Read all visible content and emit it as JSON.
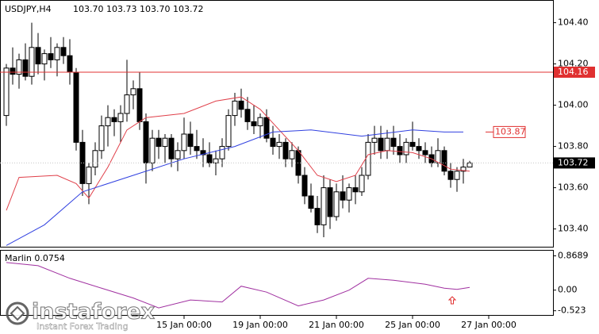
{
  "chart_data": [
    {
      "type": "candlestick",
      "title": "USDJPY,H4",
      "subtitle": "103.70 103.73 103.70 103.72",
      "open": [
        103.95,
        104.18,
        104.15,
        104.22,
        104.14,
        104.28,
        104.2,
        104.25,
        104.22,
        104.28,
        104.24,
        104.16,
        103.82,
        103.62,
        103.7,
        103.78,
        103.9,
        103.94,
        103.92,
        103.96,
        104.05,
        104.08,
        103.92,
        103.72,
        103.84,
        103.8,
        103.84,
        103.74,
        103.78,
        103.86,
        103.8,
        103.78,
        103.76,
        103.72,
        103.74,
        103.8,
        103.95,
        104.02,
        103.98,
        103.92,
        103.9,
        103.94,
        103.84,
        103.8,
        103.82,
        103.74,
        103.78,
        103.66,
        103.56,
        103.5,
        103.42,
        103.6,
        103.46,
        103.58,
        103.54,
        103.6,
        103.58,
        103.66,
        103.82,
        103.84,
        103.78,
        103.84,
        103.8,
        103.76,
        103.82,
        103.8,
        103.78,
        103.76,
        103.72,
        103.78,
        103.68,
        103.64,
        103.68,
        103.7
      ],
      "high": [
        104.2,
        104.28,
        104.25,
        104.3,
        104.4,
        104.35,
        104.27,
        104.33,
        104.3,
        104.33,
        104.32,
        104.18,
        103.88,
        103.72,
        103.82,
        103.95,
        104.0,
        103.98,
        104.0,
        104.22,
        104.12,
        104.16,
        103.96,
        103.88,
        103.88,
        103.86,
        103.86,
        103.82,
        103.94,
        103.92,
        103.88,
        103.84,
        103.82,
        103.78,
        103.84,
        103.98,
        104.06,
        104.08,
        104.04,
        104.0,
        103.96,
        103.98,
        103.9,
        103.86,
        103.84,
        103.82,
        103.8,
        103.7,
        103.62,
        103.56,
        103.66,
        103.64,
        103.62,
        103.66,
        103.62,
        103.66,
        103.7,
        103.86,
        103.9,
        103.9,
        103.88,
        103.9,
        103.86,
        103.84,
        103.92,
        103.84,
        103.82,
        103.8,
        103.84,
        103.8,
        103.72,
        103.7,
        103.74,
        103.73
      ],
      "low": [
        103.9,
        104.1,
        104.08,
        104.12,
        104.1,
        104.15,
        104.12,
        104.18,
        104.14,
        104.2,
        104.1,
        103.78,
        103.56,
        103.52,
        103.66,
        103.74,
        103.8,
        103.85,
        103.82,
        103.92,
        103.98,
        103.88,
        103.62,
        103.68,
        103.74,
        103.72,
        103.7,
        103.68,
        103.74,
        103.76,
        103.74,
        103.7,
        103.7,
        103.66,
        103.7,
        103.78,
        103.9,
        103.94,
        103.88,
        103.86,
        103.84,
        103.82,
        103.76,
        103.74,
        103.7,
        103.7,
        103.62,
        103.52,
        103.48,
        103.38,
        103.36,
        103.4,
        103.44,
        103.5,
        103.48,
        103.52,
        103.56,
        103.64,
        103.76,
        103.74,
        103.74,
        103.76,
        103.72,
        103.72,
        103.78,
        103.74,
        103.72,
        103.7,
        103.7,
        103.66,
        103.6,
        103.58,
        103.62,
        103.7
      ],
      "close": [
        104.18,
        104.15,
        104.22,
        104.14,
        104.28,
        104.2,
        104.25,
        104.22,
        104.28,
        104.24,
        104.16,
        103.82,
        103.62,
        103.7,
        103.78,
        103.9,
        103.94,
        103.92,
        103.96,
        104.05,
        104.08,
        103.92,
        103.72,
        103.84,
        103.8,
        103.84,
        103.74,
        103.78,
        103.86,
        103.8,
        103.78,
        103.76,
        103.72,
        103.74,
        103.8,
        103.95,
        104.02,
        103.98,
        103.92,
        103.9,
        103.94,
        103.84,
        103.8,
        103.82,
        103.74,
        103.78,
        103.66,
        103.56,
        103.5,
        103.42,
        103.6,
        103.46,
        103.58,
        103.54,
        103.6,
        103.58,
        103.66,
        103.82,
        103.84,
        103.78,
        103.84,
        103.8,
        103.76,
        103.82,
        103.8,
        103.78,
        103.76,
        103.72,
        103.78,
        103.68,
        103.64,
        103.68,
        103.7,
        103.72
      ],
      "averages": [
        {
          "color": "#e0404a",
          "x": [
            0,
            2,
            8,
            11,
            13,
            16,
            19,
            22,
            28,
            33,
            37,
            40,
            43,
            46,
            49,
            52,
            55,
            57,
            60,
            64,
            67,
            70,
            73
          ],
          "values": [
            103.49,
            103.65,
            103.66,
            103.62,
            103.55,
            103.7,
            103.88,
            103.94,
            103.96,
            104.02,
            104.04,
            103.98,
            103.88,
            103.78,
            103.66,
            103.63,
            103.66,
            103.76,
            103.78,
            103.77,
            103.74,
            103.69,
            103.68
          ]
        },
        {
          "color": "#3040e0",
          "x": [
            0,
            6,
            12,
            20,
            28,
            36,
            42,
            48,
            56,
            64,
            69,
            72
          ],
          "values": [
            103.32,
            103.42,
            103.58,
            103.66,
            103.74,
            103.8,
            103.87,
            103.88,
            103.85,
            103.88,
            103.87,
            103.87
          ]
        }
      ],
      "levels": [
        {
          "value": 104.16,
          "label": "104.16",
          "color": "#e03030",
          "style": "line"
        },
        {
          "value": 103.87,
          "label": "103.87",
          "color": "#e03030",
          "style": "tag"
        },
        {
          "value": 103.72,
          "label": "103.72",
          "color": "#000000",
          "style": "current"
        }
      ],
      "ylim": [
        103.31,
        104.51
      ],
      "yticks": [
        {
          "value": 103.4,
          "label": "103.40"
        },
        {
          "value": 103.6,
          "label": "103.60"
        },
        {
          "value": 103.8,
          "label": "103.80"
        },
        {
          "value": 104.0,
          "label": "104.00"
        },
        {
          "value": 104.2,
          "label": "104.20"
        },
        {
          "value": 104.4,
          "label": "104.40"
        }
      ],
      "xticks": [
        {
          "value": 28,
          "label": "15 Jan 00:00"
        },
        {
          "value": 40,
          "label": "19 Jan 00:00"
        },
        {
          "value": 52,
          "label": "21 Jan 00:00"
        },
        {
          "value": 64,
          "label": "25 Jan 00:00"
        },
        {
          "value": 76,
          "label": "27 Jan 00:00"
        }
      ]
    },
    {
      "type": "line",
      "title": "Marlin 0.0754",
      "color": "#a030a0",
      "x": [
        0,
        5,
        10,
        15,
        20,
        24,
        29,
        34,
        37,
        41,
        46,
        50,
        54,
        57,
        61,
        66,
        69,
        71,
        73
      ],
      "values": [
        0.7,
        0.62,
        0.3,
        0.05,
        -0.2,
        -0.45,
        -0.25,
        -0.3,
        0.1,
        -0.05,
        -0.4,
        -0.25,
        0.0,
        0.3,
        0.25,
        0.15,
        0.05,
        0.02,
        0.07
      ],
      "ylim": [
        -0.65,
        1.0
      ],
      "yticks": [
        {
          "value": 0.8689,
          "label": "0.8689"
        },
        {
          "value": 0,
          "label": "0.00"
        },
        {
          "value": -0.523,
          "label": "-0.523"
        }
      ]
    }
  ],
  "watermark": {
    "brand": "instaforex",
    "tagline": "Instant Forex Trading"
  }
}
